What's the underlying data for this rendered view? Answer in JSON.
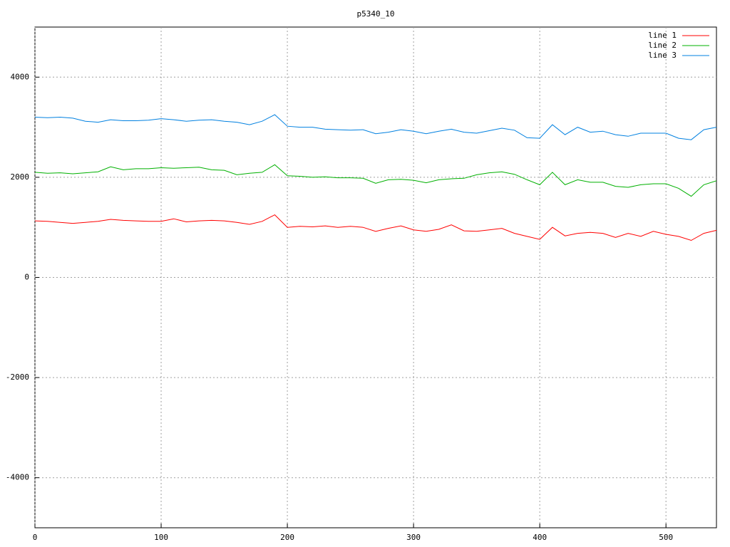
{
  "chart_data": {
    "type": "line",
    "title": "p5340_10",
    "x": [
      0,
      10,
      20,
      30,
      40,
      50,
      60,
      70,
      80,
      90,
      100,
      110,
      120,
      130,
      140,
      150,
      160,
      170,
      180,
      190,
      200,
      210,
      220,
      230,
      240,
      250,
      260,
      270,
      280,
      290,
      300,
      310,
      320,
      330,
      340,
      350,
      360,
      370,
      380,
      390,
      400,
      410,
      420,
      430,
      440,
      450,
      460,
      470,
      480,
      490,
      500,
      510,
      520,
      530,
      540
    ],
    "series": [
      {
        "name": "line 1",
        "color": "#ff0000",
        "values": [
          1130,
          1120,
          1100,
          1080,
          1100,
          1120,
          1160,
          1140,
          1130,
          1120,
          1120,
          1170,
          1110,
          1130,
          1140,
          1130,
          1100,
          1060,
          1120,
          1250,
          1000,
          1020,
          1010,
          1030,
          1000,
          1020,
          1000,
          920,
          980,
          1030,
          950,
          920,
          960,
          1050,
          930,
          920,
          950,
          980,
          880,
          820,
          760,
          1000,
          830,
          880,
          900,
          880,
          800,
          880,
          820,
          920,
          860,
          820,
          740,
          880,
          940
        ]
      },
      {
        "name": "line 2",
        "color": "#00b000",
        "values": [
          2100,
          2080,
          2090,
          2070,
          2090,
          2110,
          2210,
          2150,
          2170,
          2170,
          2190,
          2180,
          2190,
          2200,
          2150,
          2140,
          2050,
          2080,
          2100,
          2250,
          2030,
          2020,
          2000,
          2010,
          1990,
          1990,
          1980,
          1880,
          1950,
          1960,
          1940,
          1890,
          1950,
          1970,
          1980,
          2050,
          2090,
          2110,
          2060,
          1950,
          1850,
          2100,
          1850,
          1950,
          1900,
          1900,
          1820,
          1800,
          1850,
          1870,
          1870,
          1780,
          1620,
          1850,
          1930
        ]
      },
      {
        "name": "line 3",
        "color": "#0080e0",
        "values": [
          3200,
          3190,
          3200,
          3180,
          3120,
          3100,
          3150,
          3130,
          3130,
          3140,
          3170,
          3150,
          3120,
          3140,
          3150,
          3120,
          3100,
          3050,
          3120,
          3250,
          3020,
          3000,
          3000,
          2960,
          2950,
          2940,
          2950,
          2870,
          2900,
          2950,
          2920,
          2870,
          2920,
          2960,
          2900,
          2880,
          2930,
          2980,
          2940,
          2790,
          2780,
          3050,
          2850,
          3000,
          2900,
          2920,
          2850,
          2820,
          2880,
          2880,
          2880,
          2780,
          2750,
          2950,
          3000
        ]
      }
    ],
    "xlim": [
      0,
      540
    ],
    "ylim": [
      -5000,
      5000
    ],
    "xticks": [
      0,
      100,
      200,
      300,
      400,
      500
    ],
    "yticks": [
      -4000,
      -2000,
      0,
      2000,
      4000
    ],
    "grid": true,
    "legend": "top-right"
  }
}
